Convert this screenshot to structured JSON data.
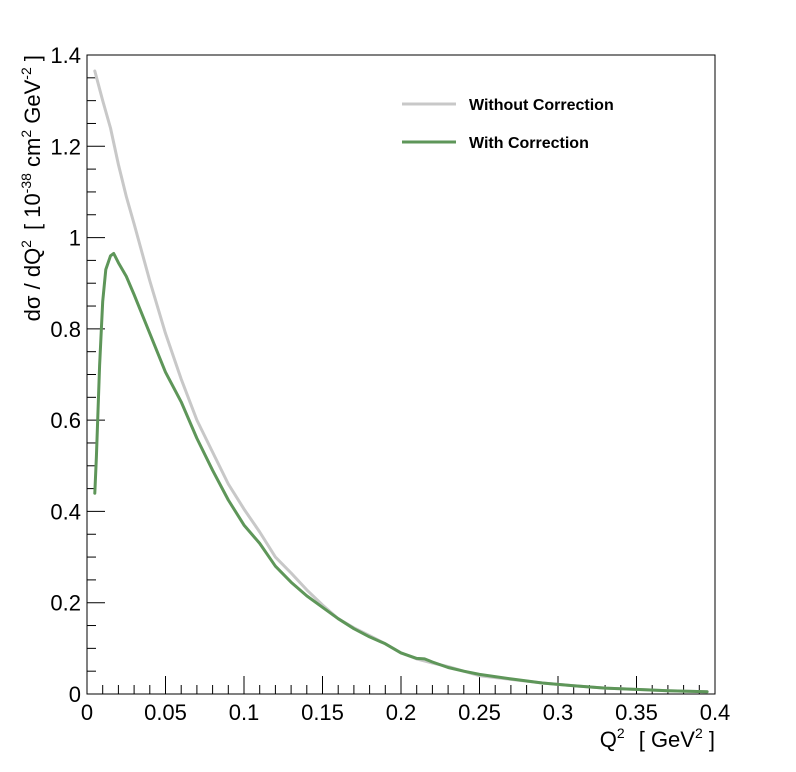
{
  "chart_data": {
    "type": "line",
    "xlim": [
      0,
      0.4
    ],
    "ylim": [
      0,
      1.4
    ],
    "x_ticks": [
      0,
      0.05,
      0.1,
      0.15,
      0.2,
      0.25,
      0.3,
      0.35,
      0.4
    ],
    "x_tick_labels": [
      "0",
      "0.05",
      "0.1",
      "0.15",
      "0.2",
      "0.25",
      "0.3",
      "0.35",
      "0.4"
    ],
    "y_ticks": [
      0,
      0.2,
      0.4,
      0.6,
      0.8,
      1,
      1.2,
      1.4
    ],
    "y_tick_labels": [
      "0",
      "0.2",
      "0.4",
      "0.6",
      "0.8",
      "1",
      "1.2",
      "1.4"
    ],
    "xlabel": {
      "q": "Q",
      "q_sup": "2",
      "unit_open": "[ GeV",
      "unit_sup": "2",
      "unit_close": " ]"
    },
    "ylabel": {
      "main": "dσ / dQ",
      "main_sup": "2",
      "unit_open": "[ 10",
      "exp1": "-38",
      "mid": " cm",
      "exp2": "2",
      "mid2": " GeV",
      "exp3": "-2",
      "unit_close": " ]"
    },
    "grid": false,
    "legend_position": "top-right",
    "series": [
      {
        "name": "Without Correction",
        "color": "#c8c8c8",
        "x": [
          0.005,
          0.01,
          0.015,
          0.02,
          0.025,
          0.03,
          0.04,
          0.05,
          0.06,
          0.07,
          0.08,
          0.09,
          0.1,
          0.11,
          0.12,
          0.13,
          0.14,
          0.15,
          0.16,
          0.17,
          0.18,
          0.19,
          0.2,
          0.21,
          0.22,
          0.23,
          0.24,
          0.25,
          0.27,
          0.29,
          0.31,
          0.33,
          0.35,
          0.37,
          0.395
        ],
        "y": [
          1.365,
          1.3,
          1.24,
          1.16,
          1.09,
          1.03,
          0.905,
          0.79,
          0.69,
          0.6,
          0.53,
          0.46,
          0.405,
          0.355,
          0.3,
          0.265,
          0.228,
          0.195,
          0.165,
          0.145,
          0.128,
          0.11,
          0.09,
          0.077,
          0.068,
          0.06,
          0.05,
          0.04,
          0.032,
          0.024,
          0.018,
          0.013,
          0.01,
          0.007,
          0.005
        ]
      },
      {
        "name": "With Correction",
        "color": "#5e9659",
        "x": [
          0.005,
          0.006,
          0.008,
          0.01,
          0.012,
          0.015,
          0.017,
          0.02,
          0.025,
          0.03,
          0.04,
          0.05,
          0.06,
          0.07,
          0.08,
          0.09,
          0.1,
          0.11,
          0.12,
          0.13,
          0.14,
          0.15,
          0.16,
          0.17,
          0.18,
          0.19,
          0.2,
          0.21,
          0.215,
          0.22,
          0.23,
          0.24,
          0.25,
          0.27,
          0.29,
          0.31,
          0.33,
          0.35,
          0.37,
          0.395
        ],
        "y": [
          0.44,
          0.52,
          0.72,
          0.86,
          0.93,
          0.96,
          0.965,
          0.945,
          0.915,
          0.875,
          0.79,
          0.705,
          0.64,
          0.56,
          0.49,
          0.425,
          0.37,
          0.33,
          0.28,
          0.245,
          0.215,
          0.19,
          0.165,
          0.143,
          0.125,
          0.11,
          0.09,
          0.078,
          0.077,
          0.07,
          0.058,
          0.05,
          0.043,
          0.033,
          0.024,
          0.018,
          0.013,
          0.01,
          0.007,
          0.005
        ]
      }
    ]
  }
}
